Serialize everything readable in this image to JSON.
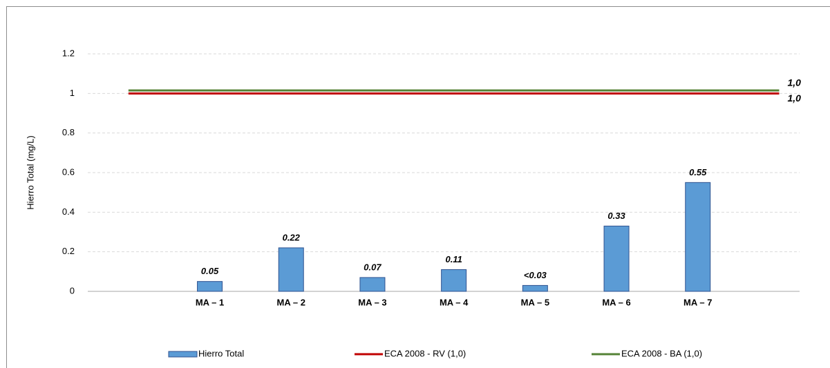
{
  "chart_data": {
    "type": "bar",
    "y_label": "Hierro Total (mg/L)",
    "categories": [
      null,
      "MA – 1",
      "MA – 2",
      "MA – 3",
      "MA – 4",
      "MA – 5",
      "MA – 6",
      "MA – 7",
      null
    ],
    "series": [
      {
        "name": "Hierro Total",
        "type": "bar",
        "color": "#5b9bd5",
        "values": [
          null,
          0.05,
          0.22,
          0.07,
          0.11,
          0.03,
          0.33,
          0.55,
          null
        ],
        "value_labels": [
          null,
          "0.05",
          "0.22",
          "0.07",
          "0.11",
          "<0.03",
          "0.33",
          "0.55",
          null
        ]
      },
      {
        "name": "ECA 2008 - RV (1,0)",
        "type": "line",
        "color": "#c00000",
        "values": [
          1,
          1,
          1,
          1,
          1,
          1,
          1,
          1,
          1
        ],
        "end_label": "1,0"
      },
      {
        "name": "ECA 2008 - BA (1,0)",
        "type": "line",
        "color": "#548235",
        "values": [
          1.015,
          1.015,
          1.015,
          1.015,
          1.015,
          1.015,
          1.015,
          1.015,
          1.015
        ],
        "end_label": "1,0"
      }
    ],
    "ylim": [
      0,
      1.2
    ],
    "yticks": [
      0,
      0.2,
      0.4,
      0.6,
      0.8,
      1,
      1.2
    ],
    "grid": true,
    "legend": "bottom"
  }
}
